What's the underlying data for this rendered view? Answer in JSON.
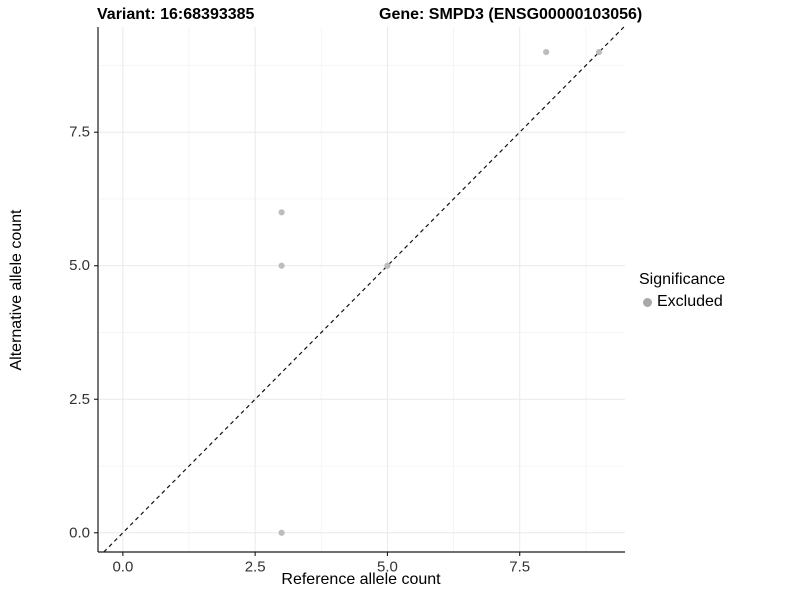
{
  "chart_data": {
    "type": "scatter",
    "title_left": "Variant: 16:68393385",
    "title_right": "Gene: SMPD3 (ENSG00000103056)",
    "xlabel": "Reference allele count",
    "ylabel": "Alternative allele count",
    "xlim": [
      -0.47,
      9.49
    ],
    "ylim": [
      -0.36,
      9.47
    ],
    "x_ticks": {
      "values": [
        0,
        2.5,
        5,
        7.5
      ],
      "labels": [
        "0.0",
        "2.5",
        "5.0",
        "7.5"
      ]
    },
    "y_ticks": {
      "values": [
        0,
        2.5,
        5,
        7.5
      ],
      "labels": [
        "0.0",
        "2.5",
        "5.0",
        "7.5"
      ]
    },
    "minor_x": [
      1.25,
      3.75,
      6.25,
      8.75
    ],
    "minor_y": [
      1.25,
      3.75,
      6.25,
      8.75
    ],
    "grid": "major+minor",
    "identity_line": {
      "equation": "y = x",
      "style": "dashed",
      "color": "#111111"
    },
    "series": [
      {
        "name": "Excluded",
        "color": "#bdbdbd",
        "points": [
          [
            3,
            0
          ],
          [
            3,
            5
          ],
          [
            3,
            6
          ],
          [
            5,
            5
          ],
          [
            8,
            9
          ],
          [
            9,
            9
          ]
        ]
      }
    ],
    "legend": {
      "title": "Significance",
      "position": "right",
      "entries": [
        {
          "label": "Excluded",
          "color": "#a8a8a8"
        }
      ]
    },
    "colors": {
      "background": "#ffffff",
      "grid_major": "#e9e9e9",
      "grid_minor": "#f4f4f4",
      "axis": "#1a1a1a",
      "tick_text": "#333333",
      "title_text": "#000000"
    }
  }
}
